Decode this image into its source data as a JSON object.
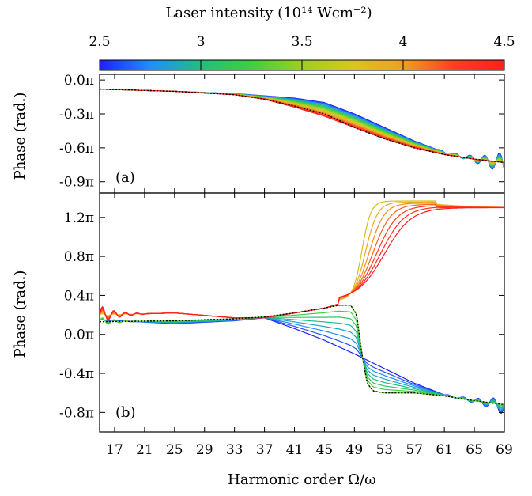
{
  "colorbar": {
    "title": "Laser intensity (10¹⁴ Wcm⁻²)",
    "ticks": [
      "2.5",
      "3",
      "3.5",
      "4",
      "4.5"
    ],
    "min": 2.5,
    "max": 4.5,
    "colors": [
      "#1f1fff",
      "#1f8fff",
      "#1fbf7f",
      "#3fcf3f",
      "#9fcf1f",
      "#d7c71f",
      "#ef9f1f",
      "#ff3f1f",
      "#ff1f1f"
    ]
  },
  "chart_data": [
    {
      "type": "line",
      "panel_label": "(a)",
      "xlabel": "Harmonic order Ω/ω",
      "ylabel": "Phase (rad.)",
      "xlim": [
        15,
        69
      ],
      "ylim": [
        -1.0,
        0.05
      ],
      "xticks": [
        17,
        21,
        25,
        29,
        33,
        37,
        41,
        45,
        49,
        53,
        57,
        61,
        65,
        69
      ],
      "ytick_labels": [
        "0.0π",
        "-0.3π",
        "-0.6π",
        "-0.9π"
      ],
      "ytick_values": [
        0.0,
        -0.3,
        -0.6,
        -0.9
      ],
      "n_intensities": 15,
      "reference_curve": {
        "style": "dotted",
        "color": "#000000",
        "x": [
          15,
          25,
          33,
          37,
          41,
          45,
          49,
          53,
          57,
          61,
          65,
          69
        ],
        "y": [
          -0.08,
          -0.1,
          -0.13,
          -0.17,
          -0.23,
          -0.3,
          -0.42,
          -0.52,
          -0.6,
          -0.66,
          -0.7,
          -0.73
        ]
      },
      "low_intensity_curve": {
        "x": [
          15,
          25,
          33,
          37,
          41,
          45,
          49,
          53,
          57,
          61,
          65,
          69
        ],
        "y": [
          -0.08,
          -0.1,
          -0.12,
          -0.14,
          -0.16,
          -0.2,
          -0.3,
          -0.42,
          -0.54,
          -0.64,
          -0.7,
          -0.74
        ]
      },
      "high_intensity_curve": {
        "x": [
          15,
          25,
          33,
          37,
          41,
          45,
          49,
          53,
          57,
          61,
          65,
          69
        ],
        "y": [
          -0.08,
          -0.1,
          -0.13,
          -0.17,
          -0.24,
          -0.32,
          -0.42,
          -0.52,
          -0.6,
          -0.66,
          -0.7,
          -0.73
        ]
      }
    },
    {
      "type": "line",
      "panel_label": "(b)",
      "xlabel": "Harmonic order Ω/ω",
      "ylabel": "Phase (rad.)",
      "xlim": [
        15,
        69
      ],
      "ylim": [
        -1.0,
        1.45
      ],
      "xticks": [
        17,
        21,
        25,
        29,
        33,
        37,
        41,
        45,
        49,
        53,
        57,
        61,
        65,
        69
      ],
      "ytick_labels": [
        "1.2π",
        "0.8π",
        "0.4π",
        "0.0π",
        "-0.4π",
        "-0.8π"
      ],
      "ytick_values": [
        1.2,
        0.8,
        0.4,
        0.0,
        -0.4,
        -0.8
      ],
      "n_intensities": 15,
      "reference_curve": {
        "style": "dotted",
        "color": "#000000",
        "x": [
          15,
          25,
          33,
          37,
          41,
          45,
          47,
          48.5,
          49.3,
          50,
          50.7,
          51.5,
          53,
          57,
          61,
          65,
          69
        ],
        "y": [
          0.13,
          0.14,
          0.16,
          0.18,
          0.22,
          0.27,
          0.3,
          0.3,
          0.2,
          -0.2,
          -0.5,
          -0.58,
          -0.6,
          -0.6,
          -0.63,
          -0.68,
          -0.72
        ]
      },
      "lower_branch_low_intensity": {
        "x": [
          15,
          25,
          33,
          37,
          41,
          45,
          49,
          53,
          57,
          61,
          65,
          69
        ],
        "y": [
          0.15,
          0.11,
          0.14,
          0.17,
          0.06,
          -0.06,
          -0.2,
          -0.35,
          -0.5,
          -0.62,
          -0.68,
          -0.73
        ]
      },
      "upper_branch_high_intensity": {
        "x": [
          15,
          25,
          33,
          37,
          41,
          45,
          49,
          51,
          53,
          57,
          61,
          65,
          69
        ],
        "y": [
          0.2,
          0.22,
          0.17,
          0.17,
          0.22,
          0.27,
          0.36,
          0.5,
          0.85,
          1.2,
          1.3,
          1.3,
          1.29
        ]
      },
      "upper_branch_plateau": 1.38
    }
  ]
}
